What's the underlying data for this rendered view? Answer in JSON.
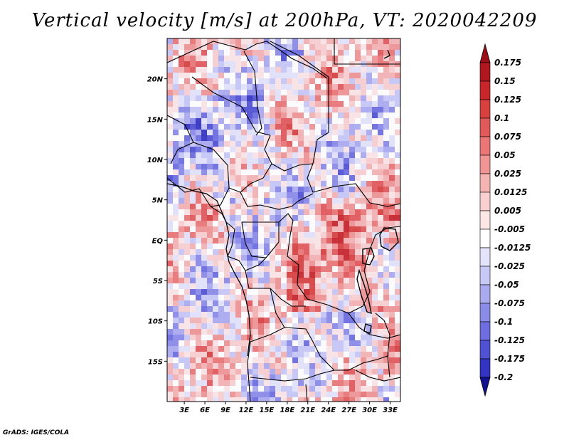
{
  "title": "Vertical velocity [m/s] at 200hPa, VT: 2020042209",
  "credit": "GrADS: IGES/COLA",
  "map": {
    "lat_labels": [
      {
        "lat": 20,
        "text": "20N"
      },
      {
        "lat": 15,
        "text": "15N"
      },
      {
        "lat": 10,
        "text": "10N"
      },
      {
        "lat": 5,
        "text": "5N"
      },
      {
        "lat": 0,
        "text": "EQ"
      },
      {
        "lat": -5,
        "text": "5S"
      },
      {
        "lat": -10,
        "text": "10S"
      },
      {
        "lat": -15,
        "text": "15S"
      }
    ],
    "lon_labels": [
      {
        "lon": 3,
        "text": "3E"
      },
      {
        "lon": 6,
        "text": "6E"
      },
      {
        "lon": 9,
        "text": "9E"
      },
      {
        "lon": 12,
        "text": "12E"
      },
      {
        "lon": 15,
        "text": "15E"
      },
      {
        "lon": 18,
        "text": "18E"
      },
      {
        "lon": 21,
        "text": "21E"
      },
      {
        "lon": 24,
        "text": "24E"
      },
      {
        "lon": 27,
        "text": "27E"
      },
      {
        "lon": 30,
        "text": "30E"
      },
      {
        "lon": 33,
        "text": "33E"
      }
    ],
    "lon_range": [
      0.5,
      34.5
    ],
    "lat_range": [
      -20,
      25
    ]
  },
  "colorbar": {
    "levels": [
      {
        "label": "0.175",
        "color": "#b0171f"
      },
      {
        "label": "0.15",
        "color": "#c8262b"
      },
      {
        "label": "0.125",
        "color": "#d8413e"
      },
      {
        "label": "0.1",
        "color": "#e2595a"
      },
      {
        "label": "0.075",
        "color": "#ea7675"
      },
      {
        "label": "0.05",
        "color": "#f09594"
      },
      {
        "label": "0.025",
        "color": "#f5b3b2"
      },
      {
        "label": "0.0125",
        "color": "#f9cfcf"
      },
      {
        "label": "0.005",
        "color": "#fce6e6"
      },
      {
        "label": "-0.005",
        "color": "#ffffff"
      },
      {
        "label": "-0.0125",
        "color": "#e3e3fb"
      },
      {
        "label": "-0.025",
        "color": "#c8c8f6"
      },
      {
        "label": "-0.05",
        "color": "#aaaaf0"
      },
      {
        "label": "-0.075",
        "color": "#8b8be8"
      },
      {
        "label": "-0.1",
        "color": "#6e6ee0"
      },
      {
        "label": "-0.125",
        "color": "#5151d4"
      },
      {
        "label": "-0.175",
        "color": "#3434c2"
      },
      {
        "label": "-0.2",
        "color": "#1d1dab"
      }
    ],
    "top_color": "#9a0f17",
    "bottom_color": "#12128f"
  }
}
